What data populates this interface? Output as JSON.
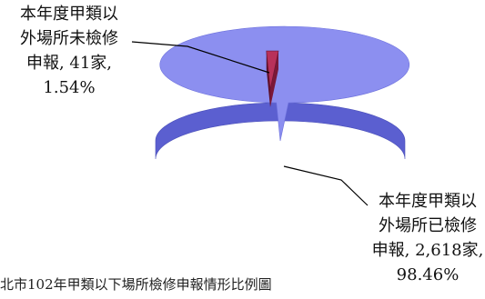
{
  "chart_data": {
    "type": "pie",
    "style": "3d-exploded",
    "slices": [
      {
        "name": "本年度甲類以外場所已檢修申報",
        "count": 2618,
        "percent": 98.46,
        "label_lines": [
          "本年度甲類以",
          "外場所已檢修",
          "申報, 2,618家,",
          "98.46%"
        ],
        "color_top": "#8c8ff0",
        "color_side": "#5b5fd0"
      },
      {
        "name": "本年度甲類以外場所未檢修申報",
        "count": 41,
        "percent": 1.54,
        "label_lines": [
          "本年度甲類以",
          "外場所未檢修",
          "申報, 41家,",
          "1.54%"
        ],
        "color_top": "#b8315a",
        "color_side": "#7a1838"
      }
    ]
  },
  "caption": "北市102年甲類以下場所檢修申報情形比例圖"
}
